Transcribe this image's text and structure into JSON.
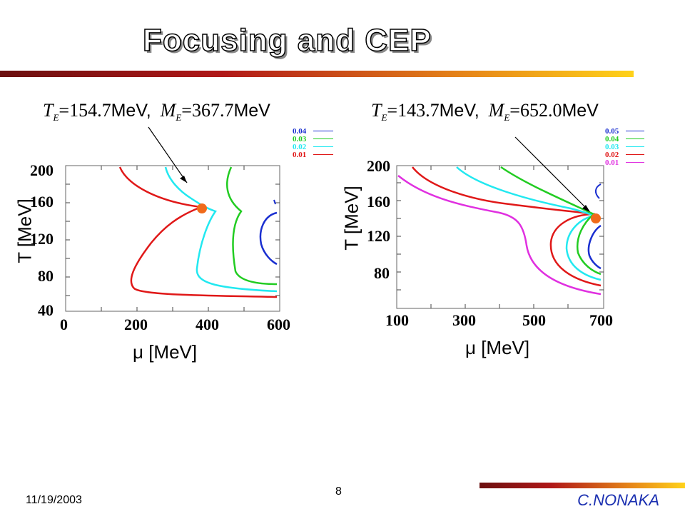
{
  "slide": {
    "title": "Focusing and CEP",
    "date": "11/19/2003",
    "page_number": "8",
    "author": "C.NONAKA"
  },
  "colors": {
    "bar_gradient": [
      "#6b1010",
      "#b01818",
      "#e88a18",
      "#ffd21a"
    ],
    "author": "#1a2fb0",
    "cep_point": "#f06a1a"
  },
  "left_panel": {
    "equation": {
      "T_symbol": "T",
      "T_sub": "E",
      "T_value": "=154.7",
      "T_unit": "MeV,",
      "M_symbol": "M",
      "M_sub": "E",
      "M_value": "=367.7",
      "M_unit": "MeV"
    },
    "x_label": "μ [MeV]",
    "y_label": "T [MeV]",
    "x_ticks": [
      "0",
      "200",
      "400",
      "600"
    ],
    "y_ticks": [
      "200",
      "160",
      "120",
      "80",
      "40"
    ],
    "legend": [
      {
        "label": "0.04",
        "color": "#1a2fd0"
      },
      {
        "label": "0.03",
        "color": "#22cc22"
      },
      {
        "label": "0.02",
        "color": "#22e8f0"
      },
      {
        "label": "0.01",
        "color": "#e01818"
      }
    ],
    "cep": {
      "mu": 380,
      "T": 154.7
    }
  },
  "right_panel": {
    "equation": {
      "T_symbol": "T",
      "T_sub": "E",
      "T_value": "=143.7",
      "T_unit": "MeV,",
      "M_symbol": "M",
      "M_sub": "E",
      "M_value": "=652.0",
      "M_unit": "MeV"
    },
    "x_label": "μ [MeV]",
    "y_label": "T [MeV]",
    "x_ticks": [
      "100",
      "300",
      "500",
      "700"
    ],
    "y_ticks": [
      "200",
      "160",
      "120",
      "80"
    ],
    "legend": [
      {
        "label": "0.05",
        "color": "#1a2fd0"
      },
      {
        "label": "0.04",
        "color": "#22cc22"
      },
      {
        "label": "0.03",
        "color": "#22e8f0"
      },
      {
        "label": "0.02",
        "color": "#e01818"
      },
      {
        "label": "0.01",
        "color": "#e030e0"
      }
    ],
    "cep": {
      "mu": 680,
      "T": 143.7
    }
  }
}
